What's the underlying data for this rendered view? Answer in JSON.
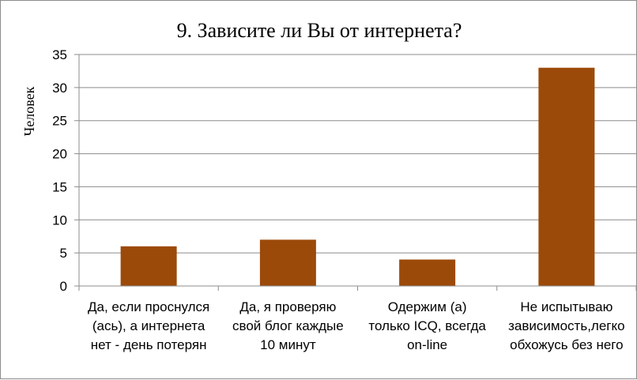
{
  "chart_data": {
    "type": "bar",
    "title": "9. Зависите ли Вы от интернета?",
    "ylabel": "Человек",
    "xlabel": "",
    "ylim": [
      0,
      35
    ],
    "yticks": [
      0,
      5,
      10,
      15,
      20,
      25,
      30,
      35
    ],
    "grid": true,
    "legend": "none",
    "bar_color": "#9c4a0a",
    "categories": [
      [
        "Да, если проснулся",
        "(ась), а интернета",
        "нет - день потерян"
      ],
      [
        "Да, я проверяю",
        "свой блог каждые",
        "10 минут"
      ],
      [
        "Одержим (а)",
        "только ICQ, всегда",
        "on-line"
      ],
      [
        "Не испытываю",
        "зависимость,легко",
        "обхожусь без него"
      ]
    ],
    "values": [
      6,
      7,
      4,
      33
    ]
  }
}
